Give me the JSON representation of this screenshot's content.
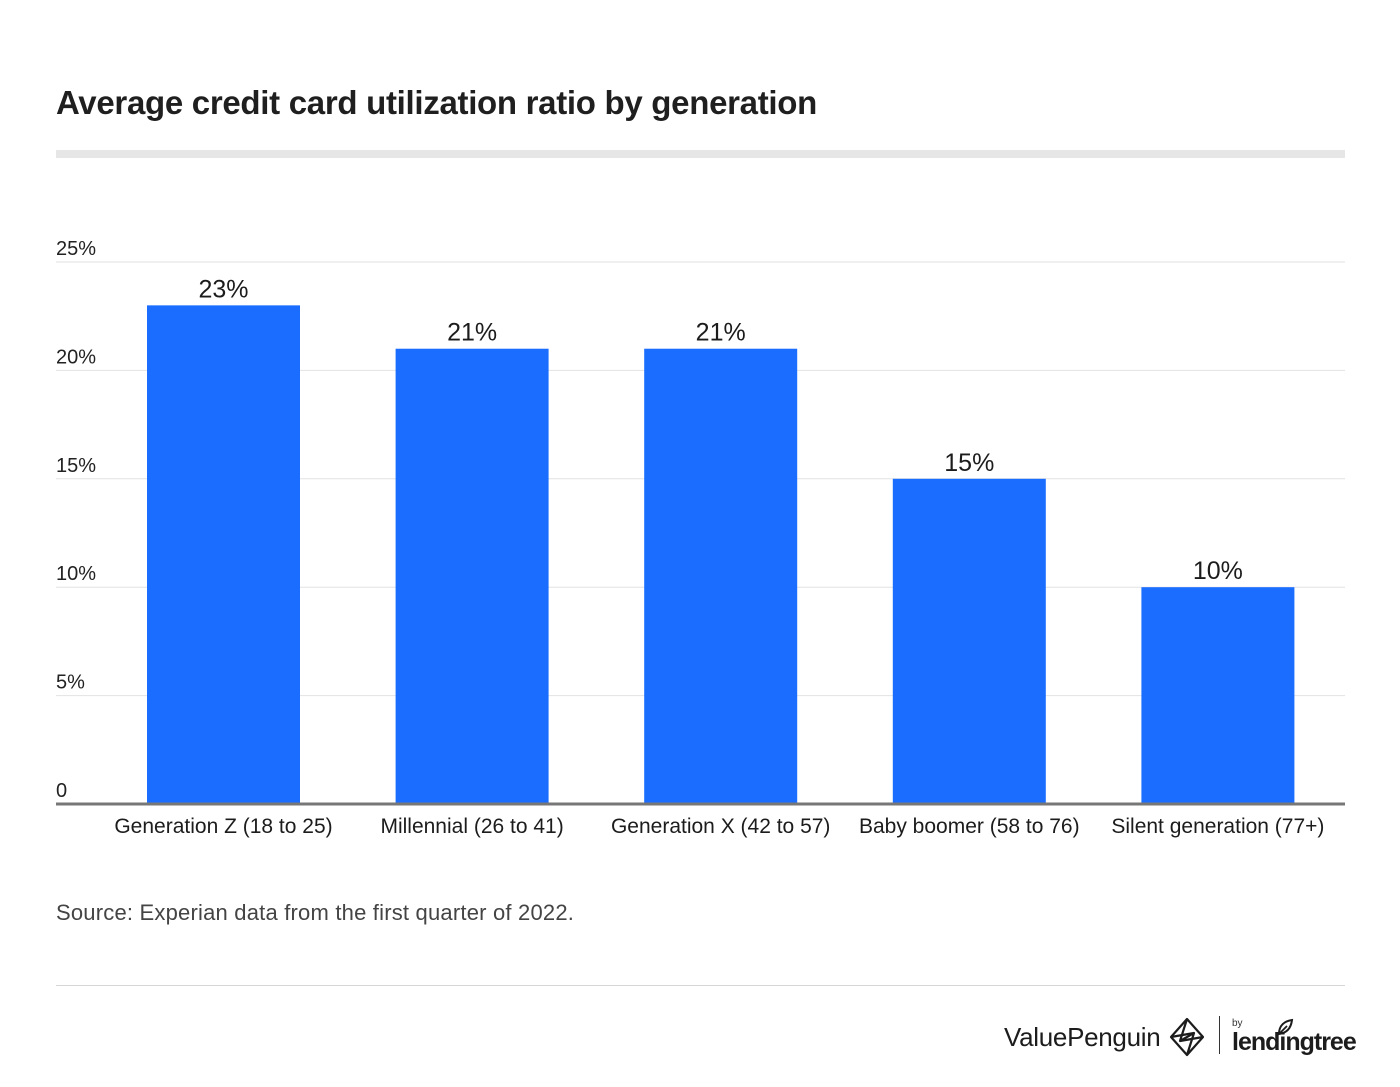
{
  "header": {
    "title": "Average credit card utilization ratio by generation"
  },
  "chart_data": {
    "type": "bar",
    "categories": [
      "Generation Z (18 to 25)",
      "Millennial (26 to 41)",
      "Generation X (42 to 57)",
      "Baby boomer (58 to 76)",
      "Silent generation (77+)"
    ],
    "values": [
      23,
      21,
      21,
      15,
      10
    ],
    "data_labels": [
      "23%",
      "21%",
      "21%",
      "15%",
      "10%"
    ],
    "ylim": [
      0,
      25
    ],
    "yticks": [
      0,
      5,
      10,
      15,
      20,
      25
    ],
    "ytick_labels": [
      "0",
      "5%",
      "10%",
      "15%",
      "20%",
      "25%"
    ],
    "grid": true,
    "legend": "none",
    "bar_color": "#1a6dff"
  },
  "footer": {
    "source": "Source: Experian data from the first quarter of 2022.",
    "brand_valuepenguin": "ValuePenguin",
    "brand_by": "by",
    "brand_lendingtree": "lendingtree"
  },
  "icons": [
    "valuepenguin-logo-icon",
    "lendingtree-leaf-icon"
  ]
}
